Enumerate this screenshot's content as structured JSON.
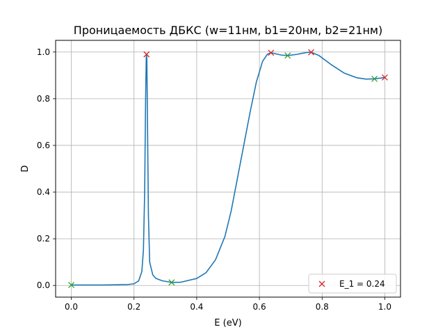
{
  "chart_data": {
    "type": "line",
    "title": "Проницаемость ДБКС (w=11нм, b1=20нм, b2=21нм)",
    "xlabel": "E (eV)",
    "ylabel": "D",
    "xlim": [
      -0.05,
      1.05
    ],
    "ylim": [
      -0.05,
      1.05
    ],
    "xticks": [
      0.0,
      0.2,
      0.4,
      0.6,
      0.8,
      1.0
    ],
    "xtick_labels": [
      "0.0",
      "0.2",
      "0.4",
      "0.6",
      "0.8",
      "1.0"
    ],
    "yticks": [
      0.0,
      0.2,
      0.4,
      0.6,
      0.8,
      1.0
    ],
    "ytick_labels": [
      "0.0",
      "0.2",
      "0.4",
      "0.6",
      "0.8",
      "1.0"
    ],
    "grid": true,
    "legend_position": "lower right",
    "series": [
      {
        "style": "line",
        "color": "#1f77b4",
        "x": [
          0.0,
          0.05,
          0.1,
          0.15,
          0.18,
          0.2,
          0.215,
          0.225,
          0.23,
          0.234,
          0.237,
          0.239,
          0.24,
          0.241,
          0.243,
          0.246,
          0.25,
          0.26,
          0.27,
          0.29,
          0.32,
          0.35,
          0.4,
          0.43,
          0.46,
          0.49,
          0.51,
          0.53,
          0.55,
          0.57,
          0.59,
          0.61,
          0.625,
          0.637,
          0.65,
          0.67,
          0.69,
          0.72,
          0.75,
          0.765,
          0.79,
          0.83,
          0.87,
          0.91,
          0.94,
          0.967,
          0.985,
          1.0
        ],
        "y": [
          0.002,
          0.002,
          0.002,
          0.003,
          0.004,
          0.007,
          0.02,
          0.06,
          0.15,
          0.4,
          0.8,
          0.97,
          0.99,
          0.97,
          0.7,
          0.3,
          0.1,
          0.045,
          0.03,
          0.02,
          0.013,
          0.014,
          0.03,
          0.055,
          0.11,
          0.21,
          0.32,
          0.46,
          0.6,
          0.74,
          0.87,
          0.96,
          0.99,
          0.997,
          0.993,
          0.987,
          0.985,
          0.99,
          0.998,
          0.999,
          0.985,
          0.945,
          0.91,
          0.89,
          0.884,
          0.885,
          0.888,
          0.891
        ]
      },
      {
        "style": "markers",
        "marker": "x",
        "color": "#d62728",
        "name": "E_1 = 0.24",
        "x": [
          0.24,
          0.637,
          0.765,
          1.0
        ],
        "y": [
          0.99,
          0.997,
          0.999,
          0.891
        ]
      },
      {
        "style": "markers",
        "marker": "x",
        "color": "#2ca02c",
        "x": [
          0.0,
          0.32,
          0.69,
          0.967
        ],
        "y": [
          0.002,
          0.013,
          0.985,
          0.885
        ]
      }
    ]
  }
}
